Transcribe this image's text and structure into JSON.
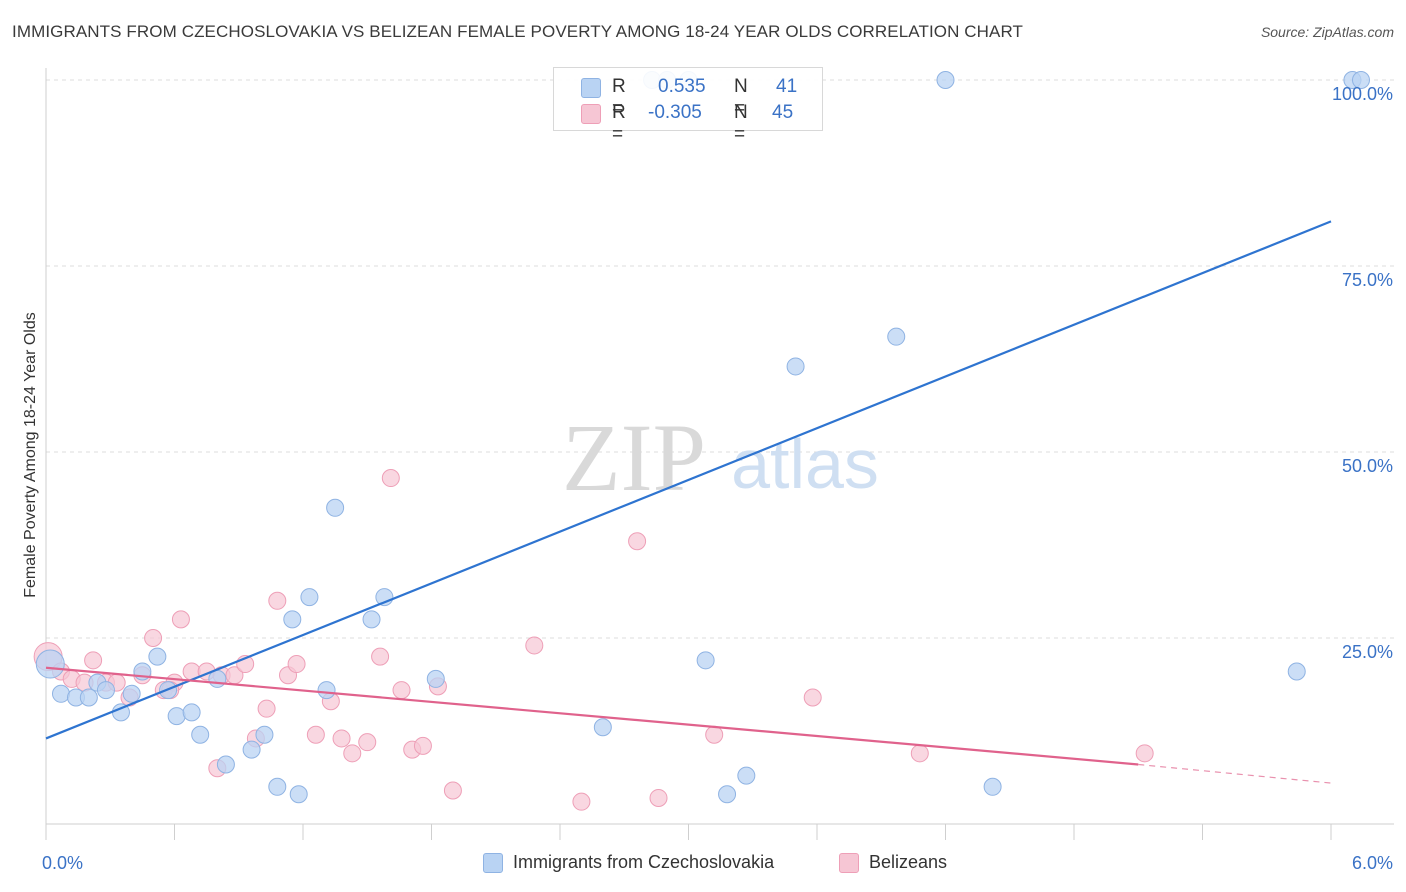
{
  "header": {
    "title": "IMMIGRANTS FROM CZECHOSLOVAKIA VS BELIZEAN FEMALE POVERTY AMONG 18-24 YEAR OLDS CORRELATION CHART",
    "source": "Source: ZipAtlas.com"
  },
  "watermark": {
    "zip": "ZIP",
    "atlas": "atlas"
  },
  "legend": {
    "rows": [
      {
        "r_label": "R =",
        "r_value": "0.535",
        "n_label": "N =",
        "n_value": "41"
      },
      {
        "r_label": "R =",
        "r_value": "-0.305",
        "n_label": "N =",
        "n_value": "45"
      }
    ]
  },
  "bottom_legend": {
    "series1": "Immigrants from Czechoslovakia",
    "series2": "Belizeans"
  },
  "colors": {
    "blue_fill": "#b9d3f3",
    "blue_stroke": "#8fb3e3",
    "blue_line": "#2e74d0",
    "pink_fill": "#f6c6d4",
    "pink_stroke": "#ee9fb7",
    "pink_line": "#e0628c",
    "tick_text": "#3a72c6",
    "grid": "#dcdcdc"
  },
  "chart_data": {
    "type": "scatter",
    "title": "IMMIGRANTS FROM CZECHOSLOVAKIA VS BELIZEAN FEMALE POVERTY AMONG 18-24 YEAR OLDS CORRELATION CHART",
    "xlabel": "",
    "ylabel": "Female Poverty Among 18-24 Year Olds",
    "xlim": [
      0,
      6
    ],
    "ylim": [
      0,
      100
    ],
    "x_tick_labels": [
      "0.0%",
      "6.0%"
    ],
    "y_tick_labels": [
      "25.0%",
      "50.0%",
      "75.0%",
      "100.0%"
    ],
    "y_ticks": [
      25,
      50,
      75,
      100
    ],
    "grid": true,
    "legend_position": "top-center",
    "series": [
      {
        "name": "Immigrants from Czechoslovakia",
        "color": "#b9d3f3",
        "R": 0.535,
        "N": 41,
        "trend": [
          [
            0,
            11.5
          ],
          [
            6,
            81.0
          ]
        ],
        "points": [
          [
            0.02,
            21.5
          ],
          [
            0.07,
            17.5
          ],
          [
            0.14,
            17.0
          ],
          [
            0.2,
            17.0
          ],
          [
            0.24,
            19.0
          ],
          [
            0.28,
            18.0
          ],
          [
            0.35,
            15.0
          ],
          [
            0.4,
            17.5
          ],
          [
            0.45,
            20.5
          ],
          [
            0.52,
            22.5
          ],
          [
            0.57,
            18.0
          ],
          [
            0.61,
            14.5
          ],
          [
            0.68,
            15.0
          ],
          [
            0.72,
            12.0
          ],
          [
            0.8,
            19.5
          ],
          [
            0.84,
            8.0
          ],
          [
            0.96,
            10.0
          ],
          [
            1.02,
            12.0
          ],
          [
            1.08,
            5.0
          ],
          [
            1.15,
            27.5
          ],
          [
            1.18,
            4.0
          ],
          [
            1.23,
            30.5
          ],
          [
            1.31,
            18.0
          ],
          [
            1.35,
            42.5
          ],
          [
            1.52,
            27.5
          ],
          [
            1.58,
            30.5
          ],
          [
            1.82,
            19.5
          ],
          [
            2.6,
            13.0
          ],
          [
            2.83,
            100.0
          ],
          [
            2.9,
            100.0
          ],
          [
            3.0,
            100.0
          ],
          [
            3.08,
            22.0
          ],
          [
            3.18,
            4.0
          ],
          [
            3.27,
            6.5
          ],
          [
            3.5,
            61.5
          ],
          [
            3.97,
            65.5
          ],
          [
            4.2,
            100.0
          ],
          [
            4.42,
            5.0
          ],
          [
            6.1,
            100.0
          ],
          [
            6.14,
            100.0
          ],
          [
            5.84,
            20.5
          ]
        ]
      },
      {
        "name": "Belizeans",
        "color": "#f6c6d4",
        "R": -0.305,
        "N": 45,
        "trend": [
          [
            0,
            21.0
          ],
          [
            5.1,
            8.0
          ]
        ],
        "trend_dashed": [
          [
            5.1,
            8.0
          ],
          [
            6,
            5.5
          ]
        ],
        "points": [
          [
            0.01,
            22.5
          ],
          [
            0.07,
            20.5
          ],
          [
            0.12,
            19.5
          ],
          [
            0.18,
            19.0
          ],
          [
            0.22,
            22.0
          ],
          [
            0.28,
            19.0
          ],
          [
            0.33,
            19.0
          ],
          [
            0.39,
            17.0
          ],
          [
            0.45,
            20.0
          ],
          [
            0.5,
            25.0
          ],
          [
            0.55,
            18.0
          ],
          [
            0.6,
            19.0
          ],
          [
            0.63,
            27.5
          ],
          [
            0.68,
            20.5
          ],
          [
            0.75,
            20.5
          ],
          [
            0.8,
            7.5
          ],
          [
            0.82,
            20.0
          ],
          [
            0.88,
            20.0
          ],
          [
            0.93,
            21.5
          ],
          [
            0.98,
            11.5
          ],
          [
            1.03,
            15.5
          ],
          [
            1.08,
            30.0
          ],
          [
            1.13,
            20.0
          ],
          [
            1.17,
            21.5
          ],
          [
            1.26,
            12.0
          ],
          [
            1.33,
            16.5
          ],
          [
            1.38,
            11.5
          ],
          [
            1.43,
            9.5
          ],
          [
            1.5,
            11.0
          ],
          [
            1.56,
            22.5
          ],
          [
            1.61,
            46.5
          ],
          [
            1.66,
            18.0
          ],
          [
            1.71,
            10.0
          ],
          [
            1.76,
            10.5
          ],
          [
            1.83,
            18.5
          ],
          [
            1.9,
            4.5
          ],
          [
            2.28,
            24.0
          ],
          [
            2.5,
            3.0
          ],
          [
            2.76,
            38.0
          ],
          [
            2.86,
            3.5
          ],
          [
            3.12,
            12.0
          ],
          [
            3.58,
            17.0
          ],
          [
            4.08,
            9.5
          ],
          [
            5.13,
            9.5
          ],
          [
            0.58,
            18.0
          ]
        ]
      }
    ]
  }
}
